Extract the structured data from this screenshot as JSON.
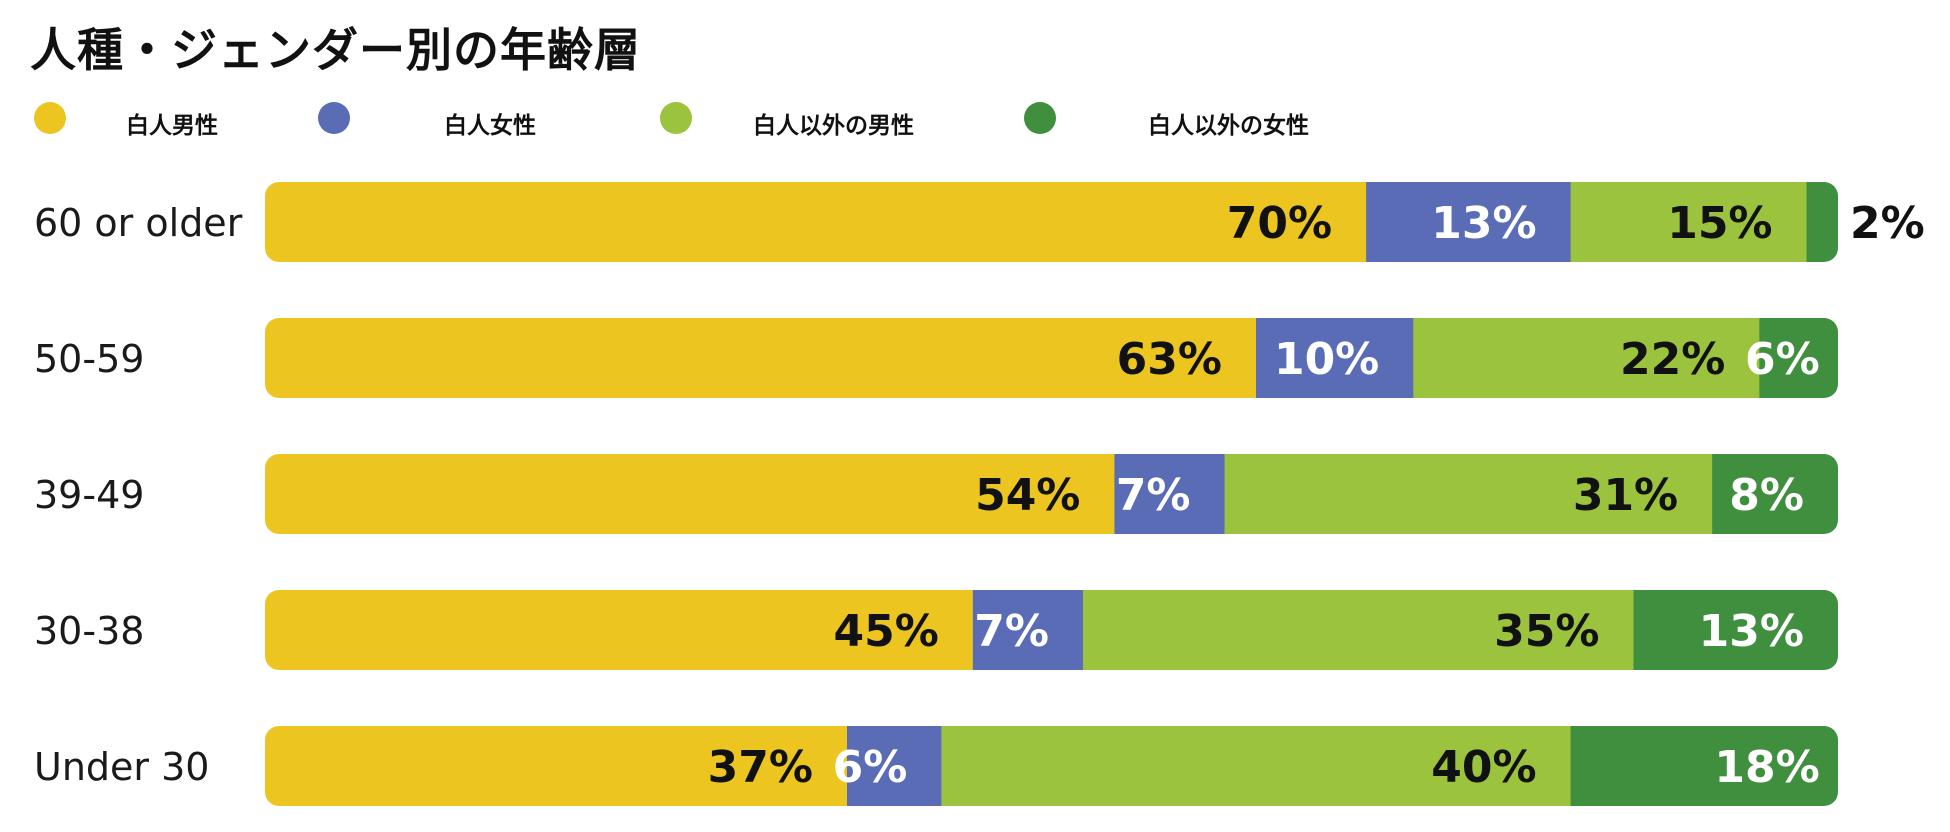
{
  "chart_data": {
    "type": "bar",
    "orientation": "horizontal",
    "stacked": true,
    "title": "人種・ジェンダー別の年齢層",
    "categories": [
      "60 or older",
      "50-59",
      "39-49",
      "30-38",
      "Under 30"
    ],
    "series": [
      {
        "name": "白人男性",
        "color": "#ECC520",
        "values": [
          70,
          63,
          54,
          45,
          37
        ],
        "labels": [
          "70%",
          "63%",
          "54%",
          "45%",
          "37%"
        ],
        "label_color": "#111111"
      },
      {
        "name": "白人女性",
        "color": "#5A6CB5",
        "values": [
          13,
          10,
          7,
          7,
          6
        ],
        "labels": [
          "13%",
          "10%",
          "7%",
          "7%",
          "6%"
        ],
        "label_color": "#ffffff"
      },
      {
        "name": "白人以外の男性",
        "color": "#9BC33D",
        "values": [
          15,
          22,
          31,
          35,
          40
        ],
        "labels": [
          "15%",
          "22%",
          "31%",
          "35%",
          "40%"
        ],
        "label_color": "#111111"
      },
      {
        "name": "白人以外の女性",
        "color": "#3F8F3F",
        "values": [
          2,
          6,
          8,
          13,
          18
        ],
        "labels": [
          "2%",
          "6%",
          "8%",
          "13%",
          "18%"
        ],
        "label_color": "#ffffff"
      }
    ],
    "xlim": [
      0,
      100
    ],
    "grid": false,
    "legend_position": "top-left"
  }
}
